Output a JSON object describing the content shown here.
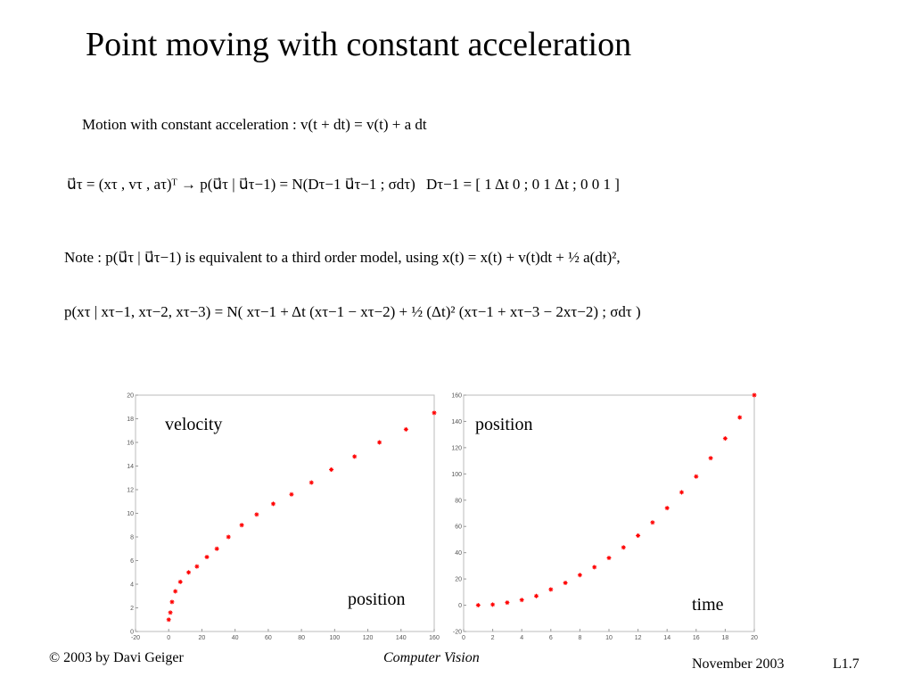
{
  "title": "Point moving with constant acceleration",
  "equations": [
    "Motion with constant acceleration : v(t + dt) = v(t) + a dt",
    "u⃗τ = (xτ , vτ , aτ)ᵀ → p(u⃗τ | u⃗τ−1) = N(Dτ−1 u⃗τ−1 ; σdτ)",
    "Dτ−1 = [ 1  Δt  0 ; 0  1  Δt ; 0  0  1 ]",
    "Note : p(u⃗τ | u⃗τ−1) is equivalent to a third order model, using x(t) = x(t) + v(t)dt + ½ a(dt)²,",
    "p(xτ | xτ−1, xτ−2, xτ−3) = N( xτ−1 + Δt (xτ−1 − xτ−2) + ½ (Δt)² (xτ−1 + xτ−3 − 2xτ−2) ; σdτ )"
  ],
  "footer": {
    "left": "© 2003 by Davi Geiger",
    "center": "Computer Vision",
    "date": "November 2003",
    "page": "L1.7"
  },
  "chart_data": [
    {
      "type": "scatter",
      "annotations": [
        "velocity",
        "position"
      ],
      "color": "#ff0000",
      "x": [
        0,
        1,
        2,
        4,
        7,
        12,
        17,
        23,
        29,
        36,
        44,
        53,
        63,
        74,
        86,
        98,
        112,
        127,
        143,
        160
      ],
      "values": [
        1,
        1.6,
        2.5,
        3.4,
        4.2,
        5,
        5.5,
        6.3,
        7,
        8,
        9,
        9.9,
        10.8,
        11.6,
        12.6,
        13.7,
        14.8,
        16,
        17.1,
        18.5
      ],
      "xlim": [
        -20,
        160
      ],
      "xticks": [
        -20,
        0,
        20,
        40,
        60,
        80,
        100,
        120,
        140,
        160
      ],
      "ylim": [
        0,
        20
      ],
      "yticks": [
        0,
        2,
        4,
        6,
        8,
        10,
        12,
        14,
        16,
        18,
        20
      ]
    },
    {
      "type": "scatter",
      "annotations": [
        "position",
        "time"
      ],
      "color": "#ff0000",
      "x": [
        1,
        2,
        3,
        4,
        5,
        6,
        7,
        8,
        9,
        10,
        11,
        12,
        13,
        14,
        15,
        16,
        17,
        18,
        19,
        20
      ],
      "values": [
        0,
        0.5,
        2,
        4,
        7,
        12,
        17,
        23,
        29,
        36,
        44,
        53,
        63,
        74,
        86,
        98,
        112,
        127,
        143,
        160
      ],
      "xlim": [
        0,
        20
      ],
      "xticks": [
        0,
        2,
        4,
        6,
        8,
        10,
        12,
        14,
        16,
        18,
        20
      ],
      "ylim": [
        -20,
        160
      ],
      "yticks": [
        -20,
        0,
        20,
        40,
        60,
        80,
        100,
        120,
        140,
        160
      ]
    }
  ]
}
